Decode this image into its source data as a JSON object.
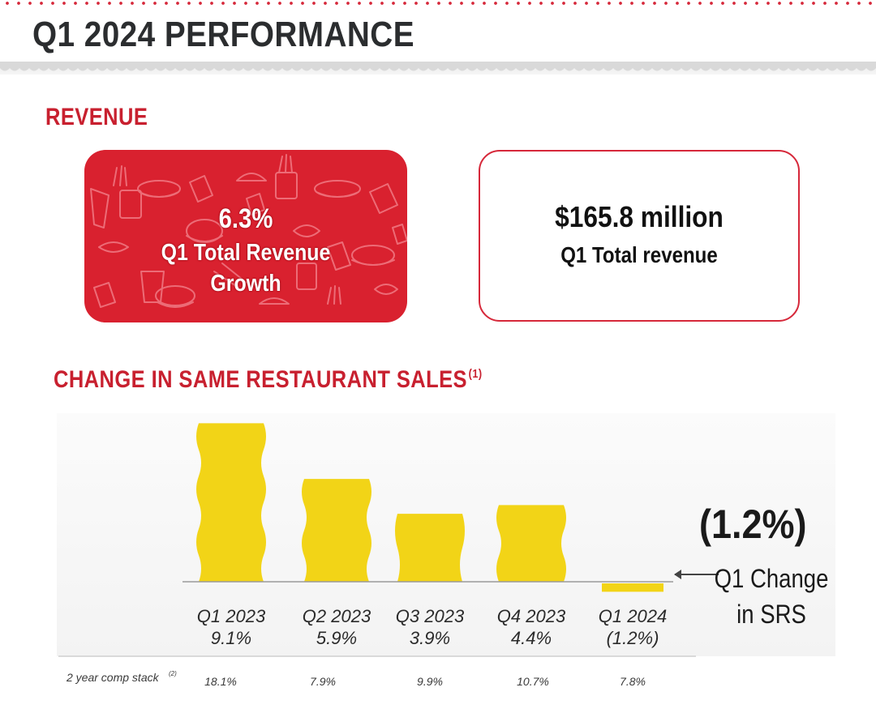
{
  "page_title": "Q1 2024 PERFORMANCE",
  "revenue_section": {
    "title": "REVENUE",
    "growth_card": {
      "value": "6.3%",
      "label": "Q1 Total Revenue Growth"
    },
    "total_card": {
      "value": "$165.8 million",
      "label": "Q1 Total revenue"
    }
  },
  "srs_section": {
    "title": "CHANGE IN SAME RESTAURANT SALES",
    "footnote_marker": "(1)",
    "callout": {
      "value": "(1.2%)",
      "label": "Q1 Change in SRS"
    },
    "comp_stack_label": "2 year comp stack",
    "comp_stack_footnote": "(2)",
    "comp_stack_values": [
      "18.1%",
      "7.9%",
      "9.9%",
      "10.7%",
      "7.8%"
    ]
  },
  "colors": {
    "accent_red": "#d6283a",
    "bar_yellow": "#f2d417",
    "text_dark": "#2b2b2b"
  },
  "chart_data": {
    "type": "bar",
    "categories": [
      "Q1 2023",
      "Q2 2023",
      "Q3 2023",
      "Q4 2023",
      "Q1 2024"
    ],
    "values": [
      9.1,
      5.9,
      3.9,
      4.4,
      -1.2
    ],
    "value_labels": [
      "9.1%",
      "5.9%",
      "3.9%",
      "4.4%",
      "(1.2%)"
    ],
    "ylabel": "",
    "xlabel": "",
    "ylim": [
      -1.5,
      10
    ],
    "grid": false,
    "legend": "none"
  }
}
